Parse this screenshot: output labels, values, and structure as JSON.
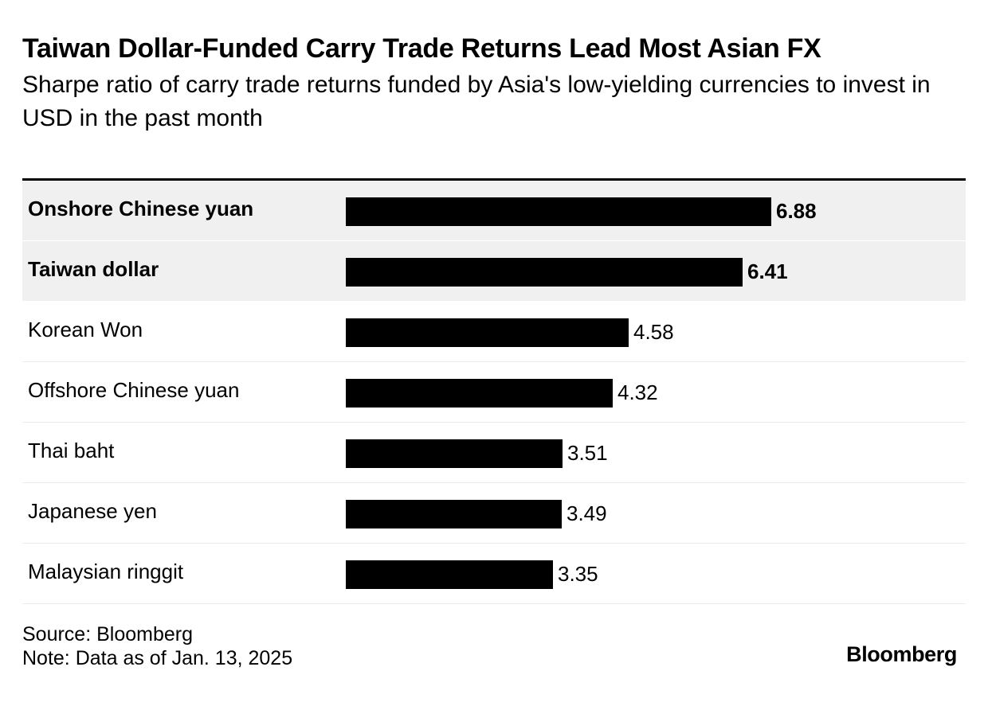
{
  "chart_data": {
    "type": "bar",
    "orientation": "horizontal",
    "title": "Taiwan Dollar-Funded Carry Trade Returns Lead Most Asian FX",
    "subtitle": "Sharpe ratio of carry trade returns funded by Asia's low-yielding currencies to invest in USD in the past month",
    "categories": [
      "Onshore Chinese yuan",
      "Taiwan dollar",
      "Korean Won",
      "Offshore Chinese yuan",
      "Thai baht",
      "Japanese yen",
      "Malaysian ringgit"
    ],
    "values": [
      6.88,
      6.41,
      4.58,
      4.32,
      3.51,
      3.49,
      3.35
    ],
    "value_labels": [
      "6.88",
      "6.41",
      "4.58",
      "4.32",
      "3.51",
      "3.49",
      "3.35"
    ],
    "highlighted": [
      true,
      true,
      false,
      false,
      false,
      false,
      false
    ],
    "xlim": [
      0,
      6.88
    ],
    "xlabel": "",
    "ylabel": "",
    "bar_color": "#000000",
    "highlight_background": "#f0f0f0",
    "grid": false,
    "legend": "none"
  },
  "footer": {
    "source": "Source: Bloomberg",
    "note": "Note: Data as of Jan. 13, 2025"
  },
  "brand": {
    "logo_text": "Bloomberg"
  }
}
